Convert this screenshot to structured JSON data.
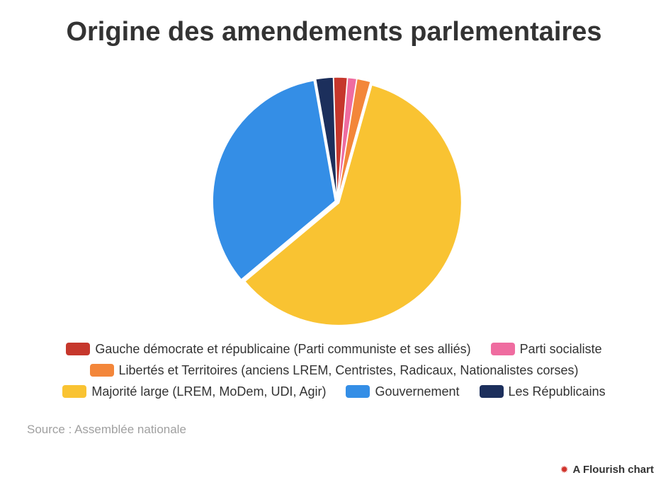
{
  "title": "Origine des amendements parlementaires",
  "source": "Source : Assemblée nationale",
  "credit": "A Flourish chart",
  "credit_icon": "flourish-logo-icon",
  "chart_data": {
    "type": "pie",
    "title": "Origine des amendements parlementaires",
    "legend_position": "bottom",
    "start_angle_deg": -10,
    "slices": [
      {
        "label": "Les Républicains",
        "value": 2.3,
        "color": "#1c2f5c"
      },
      {
        "label": "Gauche démocrate et républicaine (Parti communiste et ses alliés)",
        "value": 1.8,
        "color": "#c6372c"
      },
      {
        "label": "Parti socialiste",
        "value": 1.2,
        "color": "#ef6ca0"
      },
      {
        "label": "Libertés et Territoires (anciens LREM, Centristes, Radicaux, Nationalistes corses)",
        "value": 1.8,
        "color": "#f3863a"
      },
      {
        "label": "Majorité large (LREM, MoDem, UDI, Agir)",
        "value": 59.6,
        "color": "#f9c332"
      },
      {
        "label": "Gouvernement",
        "value": 33.3,
        "color": "#348ee6"
      }
    ]
  },
  "legend": {
    "rows": [
      [
        {
          "label": "Gauche démocrate et républicaine (Parti communiste et ses alliés)",
          "color": "#c6372c"
        },
        {
          "label": "Parti socialiste",
          "color": "#ef6ca0"
        }
      ],
      [
        {
          "label": "Libertés et Territoires (anciens LREM, Centristes, Radicaux, Nationalistes corses)",
          "color": "#f3863a"
        }
      ],
      [
        {
          "label": "Majorité large (LREM, MoDem, UDI, Agir)",
          "color": "#f9c332"
        },
        {
          "label": "Gouvernement",
          "color": "#348ee6"
        },
        {
          "label": "Les Républicains",
          "color": "#1c2f5c"
        }
      ]
    ]
  }
}
